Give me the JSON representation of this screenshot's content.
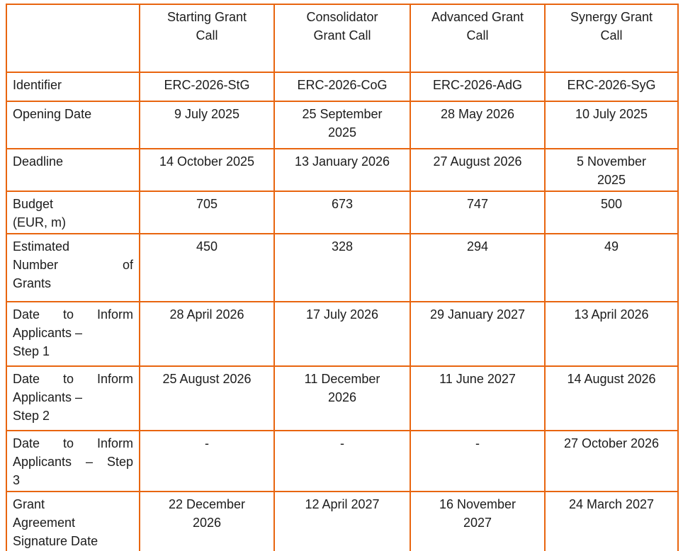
{
  "table": {
    "name": "ERC 2026 grant calls timetable",
    "border_color": "#E8650F",
    "text_color": "#1C1C1C",
    "corner_label": "",
    "columns": [
      "Starting Grant\nCall",
      "Consolidator\nGrant Call",
      "Advanced Grant\nCall",
      "Synergy Grant\nCall"
    ],
    "rows": [
      {
        "label": "Identifier",
        "label_lines": [
          {
            "text": "Identifier",
            "stretch": false
          }
        ],
        "values": [
          "ERC-2026-StG",
          "ERC-2026-CoG",
          "ERC-2026-AdG",
          "ERC-2026-SyG"
        ]
      },
      {
        "label": "Opening Date",
        "label_lines": [
          {
            "text": "Opening Date",
            "stretch": false
          }
        ],
        "values": [
          "9 July 2025",
          "25 September\n2025",
          "28 May 2026",
          "10 July 2025"
        ]
      },
      {
        "label": "Deadline",
        "label_lines": [
          {
            "text": "Deadline",
            "stretch": false
          }
        ],
        "values": [
          "14 October 2025",
          "13 January 2026",
          "27 August 2026",
          "5 November\n2025"
        ]
      },
      {
        "label": "Budget (EUR, m)",
        "label_lines": [
          {
            "text": "Budget",
            "stretch": false
          },
          {
            "text": "(EUR, m)",
            "stretch": false
          }
        ],
        "values": [
          "705",
          "673",
          "747",
          "500"
        ]
      },
      {
        "label": "Estimated Number of Grants",
        "label_lines": [
          {
            "text": "Estimated",
            "stretch": false
          },
          {
            "text": "Number of",
            "stretch": true
          },
          {
            "text": "Grants",
            "stretch": false
          }
        ],
        "values": [
          "450",
          "328",
          "294",
          "49"
        ]
      },
      {
        "label": "Date to Inform Applicants – Step 1",
        "label_lines": [
          {
            "text": "Date to Inform",
            "stretch": true
          },
          {
            "text": "Applicants –",
            "stretch": false
          },
          {
            "text": "Step 1",
            "stretch": false
          }
        ],
        "values": [
          "28 April 2026",
          "17 July 2026",
          "29 January 2027",
          "13 April 2026"
        ]
      },
      {
        "label": "Date to Inform Applicants – Step 2",
        "label_lines": [
          {
            "text": "Date to Inform",
            "stretch": true
          },
          {
            "text": "Applicants –",
            "stretch": false
          },
          {
            "text": "Step 2",
            "stretch": false
          }
        ],
        "values": [
          "25 August 2026",
          "11 December\n2026",
          "11 June 2027",
          "14 August 2026"
        ]
      },
      {
        "label": "Date to Inform Applicants – Step 3",
        "label_lines": [
          {
            "text": "Date to Inform",
            "stretch": true
          },
          {
            "text": "Applicants – Step",
            "stretch": true
          },
          {
            "text": "3",
            "stretch": false
          }
        ],
        "values": [
          "-",
          "-",
          "-",
          "27 October 2026"
        ]
      },
      {
        "label": "Grant Agreement Signature Date",
        "label_lines": [
          {
            "text": "Grant",
            "stretch": false
          },
          {
            "text": "Agreement",
            "stretch": false
          },
          {
            "text": "Signature Date",
            "stretch": false
          }
        ],
        "values": [
          "22 December\n2026",
          "12 April 2027",
          "16 November\n2027",
          "24 March 2027"
        ]
      }
    ]
  }
}
